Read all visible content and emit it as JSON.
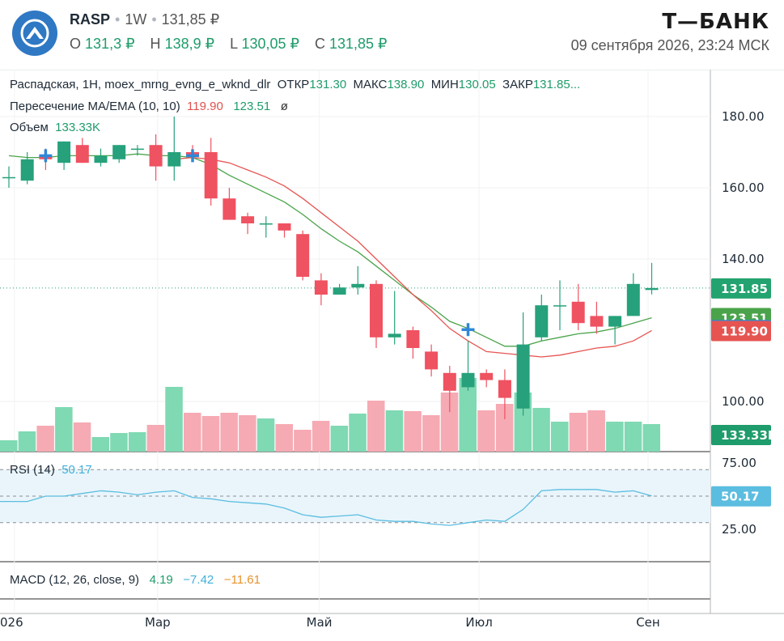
{
  "header": {
    "ticker": "RASP",
    "interval": "1W",
    "last_price": "131,85 ₽",
    "open_label": "O",
    "open_value": "131,3 ₽",
    "high_label": "H",
    "high_value": "138,9 ₽",
    "low_label": "L",
    "low_value": "130,05 ₽",
    "close_label": "C",
    "close_value": "131,85 ₽",
    "brand": "Т—БАНК",
    "datetime": "09 сентября 2026, 23:24 МСК"
  },
  "legend": {
    "line1_name": "Распадская, 1H, moex_mrng_evng_e_wknd_dlr",
    "open_label": "ОТКР",
    "open_value": "131.30",
    "high_label": "МАКС",
    "high_value": "138.90",
    "low_label": "МИН",
    "low_value": "130.05",
    "close_label": "ЗАКР",
    "close_value": "131.85...",
    "ma_label": "Пересечение MA/EMA (10, 10)",
    "ma_value": "119.90",
    "ema_value": "123.51",
    "ma_extra": "ø",
    "vol_label": "Объем",
    "vol_value": "133.33K",
    "rsi_label": "RSI (14)",
    "rsi_value": "50.17",
    "macd_label": "MACD (12, 26, close, 9)",
    "macd_v1": "4.19",
    "macd_v2": "−7.42",
    "macd_v3": "−11.61"
  },
  "colors": {
    "up": "#26a17b",
    "down": "#ef5261",
    "vol_up": "#7fd9b3",
    "vol_down": "#f6aab3",
    "ma": "#e65451",
    "ema": "#4aa34a",
    "rsi": "#5bbde0",
    "cross": "#2f87d8"
  },
  "chart_data": [
    {
      "type": "candlestick",
      "title": "Распадская, 1H, moex_mrng_evng_e_wknd_dlr",
      "price_ticks": [
        "180.00",
        "160.00",
        "140.00",
        "100.00"
      ],
      "price_tick_values": [
        180,
        160,
        140,
        100
      ],
      "x_tick_labels": [
        "026",
        "Мар",
        "Май",
        "Июл",
        "Сен"
      ],
      "x_tick_index": [
        0.3,
        8.1,
        16.9,
        25.6,
        34.8
      ],
      "candles": [
        {
          "o": 163,
          "h": 166,
          "l": 160,
          "c": 163
        },
        {
          "o": 162,
          "h": 170,
          "l": 161,
          "c": 168
        },
        {
          "o": 169,
          "h": 171,
          "l": 165,
          "c": 168
        },
        {
          "o": 167,
          "h": 173,
          "l": 165,
          "c": 173
        },
        {
          "o": 172,
          "h": 174,
          "l": 167,
          "c": 167
        },
        {
          "o": 167,
          "h": 171,
          "l": 166,
          "c": 169
        },
        {
          "o": 168,
          "h": 172,
          "l": 167,
          "c": 172
        },
        {
          "o": 171,
          "h": 172,
          "l": 169,
          "c": 171
        },
        {
          "o": 172,
          "h": 175,
          "l": 162,
          "c": 166
        },
        {
          "o": 166,
          "h": 180,
          "l": 162,
          "c": 170
        },
        {
          "o": 170,
          "h": 172,
          "l": 168,
          "c": 169
        },
        {
          "o": 170,
          "h": 174,
          "l": 155,
          "c": 157
        },
        {
          "o": 157,
          "h": 160,
          "l": 151,
          "c": 151
        },
        {
          "o": 152,
          "h": 153,
          "l": 147,
          "c": 150
        },
        {
          "o": 150,
          "h": 152,
          "l": 146,
          "c": 150
        },
        {
          "o": 150,
          "h": 150,
          "l": 146,
          "c": 148
        },
        {
          "o": 147,
          "h": 148,
          "l": 134,
          "c": 135
        },
        {
          "o": 134,
          "h": 136,
          "l": 127,
          "c": 130
        },
        {
          "o": 130,
          "h": 133,
          "l": 130,
          "c": 132
        },
        {
          "o": 132,
          "h": 138,
          "l": 130,
          "c": 133
        },
        {
          "o": 133,
          "h": 134,
          "l": 115,
          "c": 118
        },
        {
          "o": 118,
          "h": 131,
          "l": 116,
          "c": 119
        },
        {
          "o": 120,
          "h": 121,
          "l": 112,
          "c": 115
        },
        {
          "o": 114,
          "h": 116,
          "l": 107,
          "c": 109
        },
        {
          "o": 108,
          "h": 110,
          "l": 97,
          "c": 103
        },
        {
          "o": 104,
          "h": 117,
          "l": 103,
          "c": 108
        },
        {
          "o": 108,
          "h": 109,
          "l": 104,
          "c": 106
        },
        {
          "o": 106,
          "h": 109,
          "l": 95,
          "c": 101
        },
        {
          "o": 98,
          "h": 125,
          "l": 96,
          "c": 116
        },
        {
          "o": 118,
          "h": 130,
          "l": 117,
          "c": 127
        },
        {
          "o": 127,
          "h": 134,
          "l": 120,
          "c": 127
        },
        {
          "o": 128,
          "h": 133,
          "l": 120,
          "c": 122
        },
        {
          "o": 124,
          "h": 128,
          "l": 119,
          "c": 121
        },
        {
          "o": 121,
          "h": 124,
          "l": 116,
          "c": 124
        },
        {
          "o": 124,
          "h": 136,
          "l": 124,
          "c": 133
        },
        {
          "o": 131.3,
          "h": 138.9,
          "l": 130.05,
          "c": 131.85
        }
      ],
      "ma_10": [
        null,
        null,
        null,
        null,
        null,
        null,
        null,
        null,
        null,
        168,
        168.5,
        168,
        167,
        165,
        163,
        160.5,
        157,
        153,
        149,
        145,
        140,
        135,
        130,
        125.5,
        120.5,
        117,
        114,
        113.5,
        113,
        112.5,
        113,
        114,
        115,
        115.5,
        117,
        119.9
      ],
      "ema_10": [
        169,
        168.5,
        168.5,
        169,
        169,
        169,
        169,
        169.5,
        169,
        169,
        168.5,
        166.5,
        163.5,
        161,
        158.5,
        156,
        152.5,
        148.5,
        145,
        142,
        138,
        134,
        130,
        126.5,
        122.5,
        120.5,
        118,
        115.5,
        115.5,
        117,
        118,
        119,
        119.5,
        120.5,
        122,
        123.51
      ],
      "volume": [
        14,
        25,
        32,
        55,
        36,
        18,
        23,
        24,
        33,
        80,
        48,
        44,
        48,
        45,
        41,
        34,
        27,
        38,
        32,
        47,
        63,
        51,
        50,
        45,
        73,
        91,
        51,
        59,
        73,
        54,
        37,
        48,
        51,
        37,
        37,
        34
      ],
      "last_price_label": "131.85",
      "ema_label": "123.51",
      "marker_label": "120.18",
      "ma_label": "119.90",
      "volume_label": "133.33K"
    },
    {
      "type": "line",
      "title": "RSI (14)",
      "y_ticks": [
        "75.00",
        "25.00"
      ],
      "y_tick_values": [
        75,
        25
      ],
      "band": [
        30,
        70
      ],
      "values": [
        46,
        46,
        50,
        50,
        52,
        54,
        53,
        51,
        53,
        54,
        49,
        48,
        46,
        45,
        44,
        41,
        36,
        34,
        35,
        36,
        32,
        31,
        31,
        29,
        28,
        30,
        32,
        31,
        40,
        54,
        55,
        55,
        55,
        53,
        54,
        50.17
      ],
      "value_label": "50.17"
    }
  ]
}
